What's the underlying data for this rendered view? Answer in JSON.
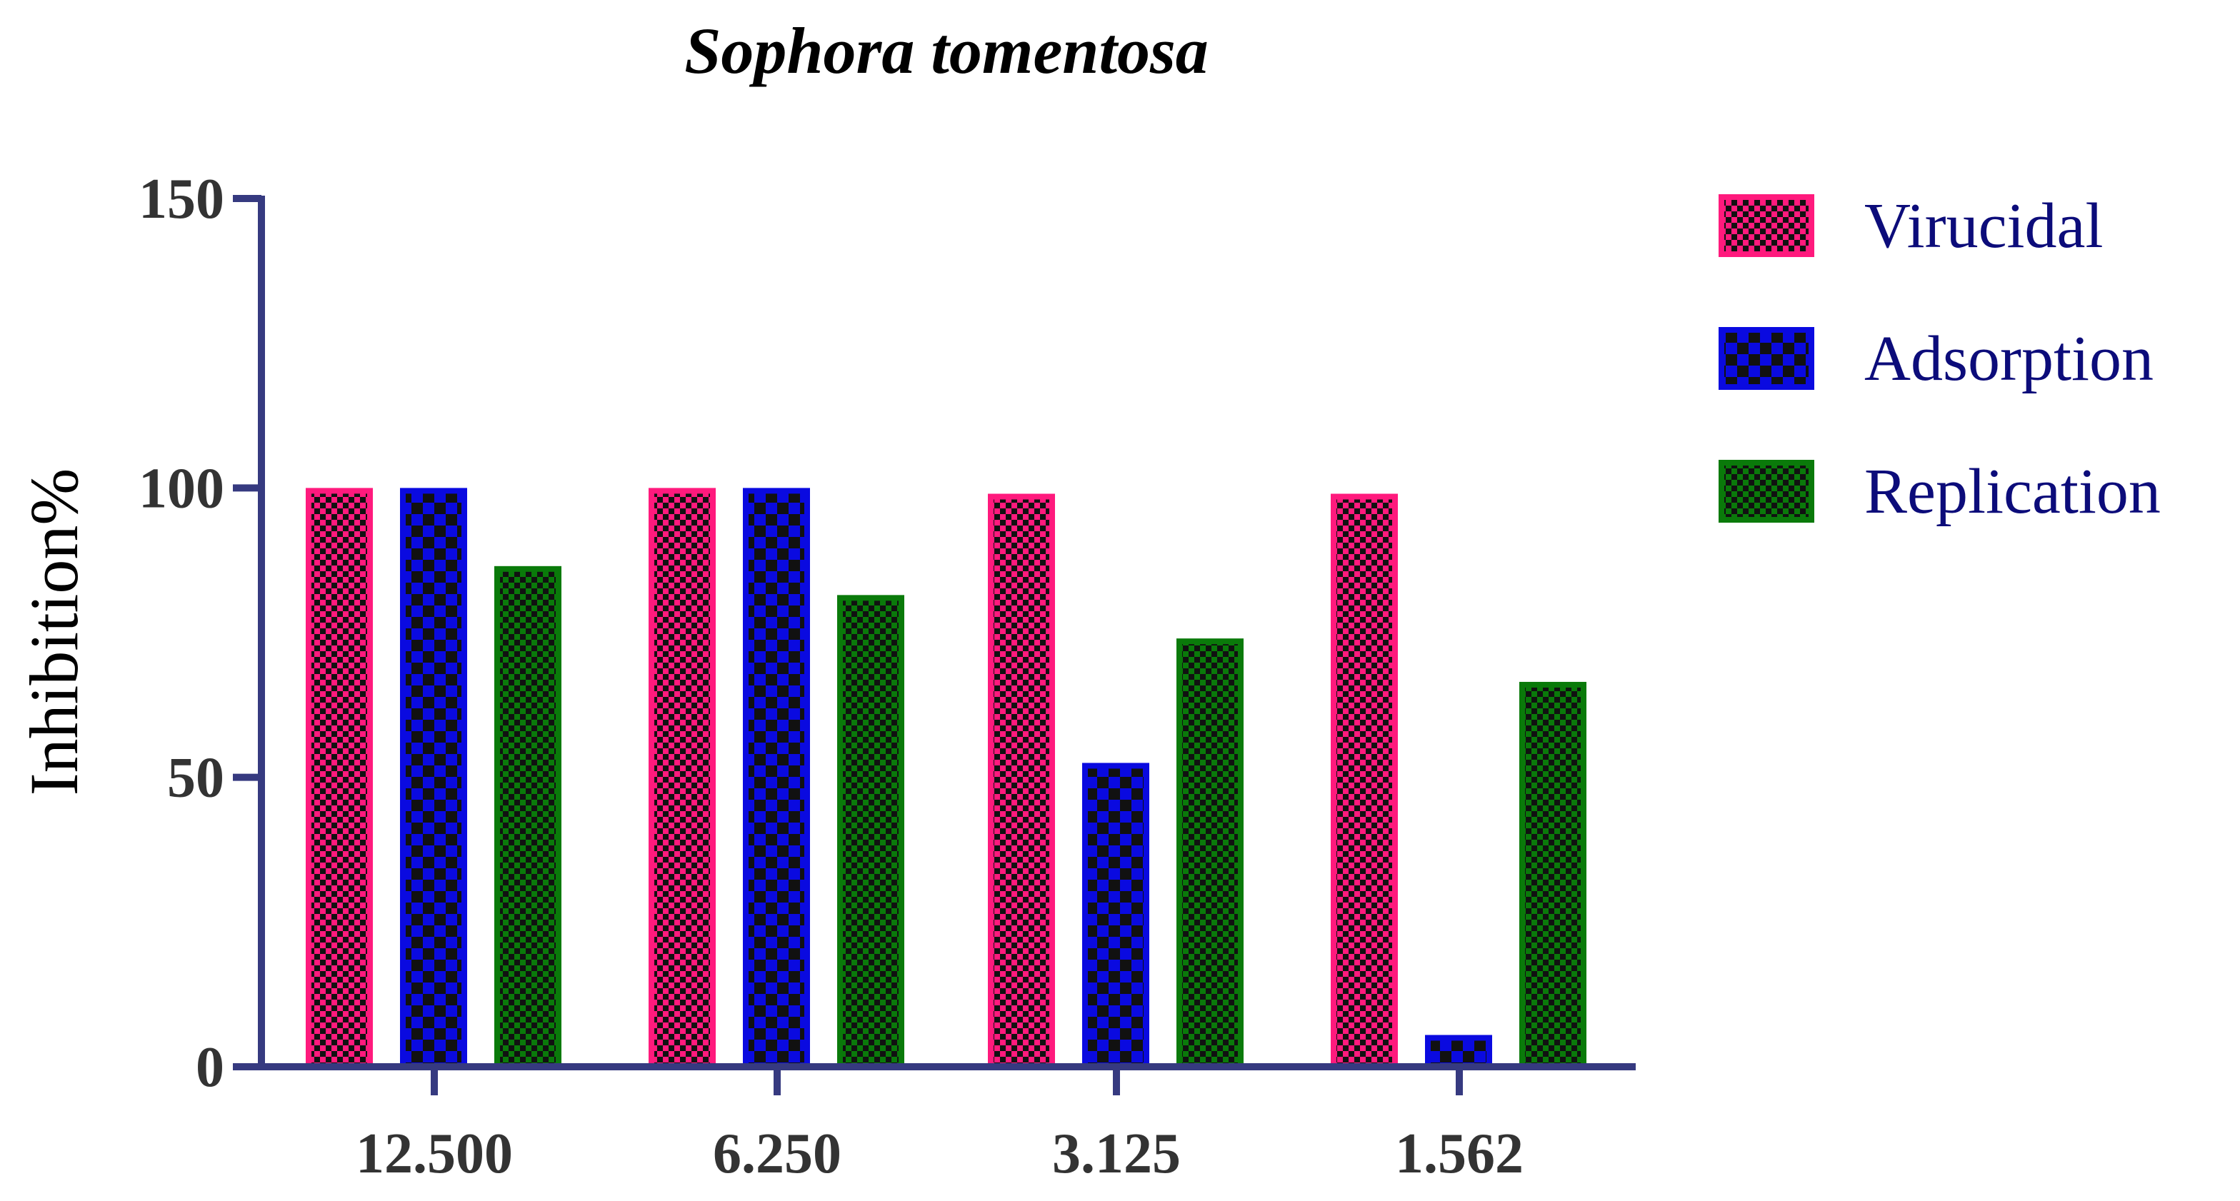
{
  "chart_data": {
    "type": "bar",
    "title": "Sophora tomentosa",
    "xlabel": "",
    "ylabel": "Inhibition%",
    "categories": [
      "12.500",
      "6.250",
      "3.125",
      "1.562"
    ],
    "ylim": [
      0,
      150
    ],
    "yticks": [
      0,
      50,
      100,
      150
    ],
    "grid": false,
    "legend_position": "right",
    "series": [
      {
        "name": "Virucidal",
        "values": [
          99.5,
          99.5,
          98.5,
          98.5
        ],
        "color": "#ff1a7d"
      },
      {
        "name": "Adsorption",
        "values": [
          99.5,
          99.5,
          52.0,
          5.0
        ],
        "color": "#0a0ae0"
      },
      {
        "name": "Replication",
        "values": [
          86.0,
          81.0,
          73.5,
          66.0
        ],
        "color": "#0a7a0a"
      }
    ],
    "axis_color": "#363a80"
  }
}
